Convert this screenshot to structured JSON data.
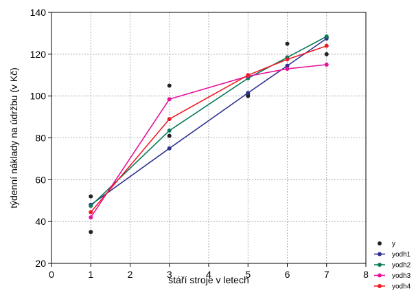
{
  "chart_data": {
    "type": "line",
    "xlabel": "stáří stroje v letech",
    "ylabel": "týdenní náklady na údržbu (v Kč)",
    "xlim": [
      0,
      8
    ],
    "ylim": [
      20,
      140
    ],
    "xticks": [
      0,
      1,
      2,
      3,
      4,
      5,
      6,
      7,
      8
    ],
    "yticks": [
      20,
      40,
      60,
      80,
      100,
      120,
      140
    ],
    "grid": true,
    "legend_position": "bottom-right",
    "series": [
      {
        "name": "y",
        "mode": "markers",
        "color": "#222222",
        "points": [
          [
            1,
            52
          ],
          [
            1,
            35
          ],
          [
            1,
            48
          ],
          [
            3,
            105
          ],
          [
            3,
            81
          ],
          [
            5,
            100
          ],
          [
            5,
            101
          ],
          [
            6,
            125
          ],
          [
            7,
            120
          ],
          [
            7,
            128
          ]
        ]
      },
      {
        "name": "yodh1",
        "mode": "lines+markers",
        "color": "#2e3192",
        "points": [
          [
            1,
            48
          ],
          [
            3,
            75
          ],
          [
            5,
            101.5
          ],
          [
            6,
            114.5
          ],
          [
            7,
            127.5
          ]
        ]
      },
      {
        "name": "yodh2",
        "mode": "lines+markers",
        "color": "#0a7a5a",
        "points": [
          [
            1,
            47.5
          ],
          [
            3,
            83.5
          ],
          [
            5,
            108.5
          ],
          [
            6,
            118.5
          ],
          [
            7,
            128.5
          ]
        ]
      },
      {
        "name": "yodh3",
        "mode": "lines+markers",
        "color": "#e6129a",
        "points": [
          [
            1,
            42
          ],
          [
            3,
            98.5
          ],
          [
            5,
            109.5
          ],
          [
            6,
            113
          ],
          [
            7,
            115
          ]
        ]
      },
      {
        "name": "yodh4",
        "mode": "lines+markers",
        "color": "#ee1c24",
        "points": [
          [
            1,
            44.5
          ],
          [
            3,
            89
          ],
          [
            5,
            110
          ],
          [
            6,
            117.5
          ],
          [
            7,
            124
          ]
        ]
      }
    ]
  }
}
